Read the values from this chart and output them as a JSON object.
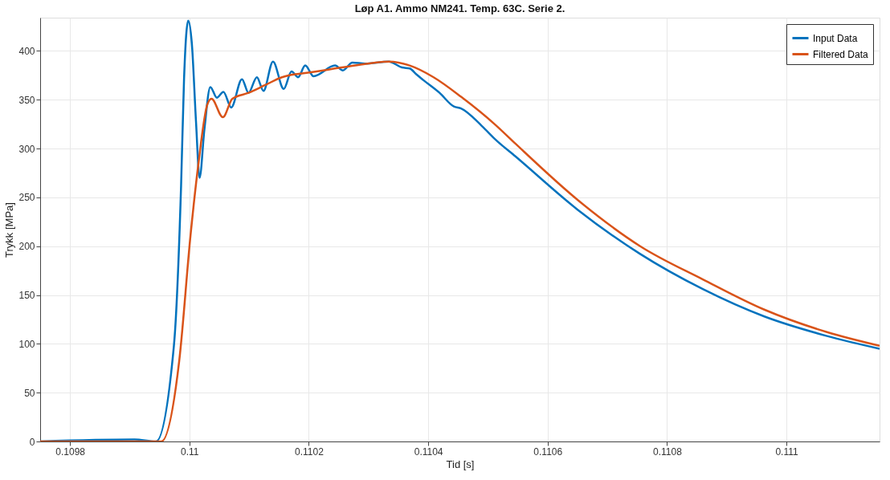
{
  "chart_data": {
    "type": "line",
    "title": "Løp A1. Ammo NM241. Temp. 63C. Serie 2.",
    "xlabel": "Tid [s]",
    "ylabel": "Trykk [MPa]",
    "xlim": [
      0.10975,
      0.111156
    ],
    "xticks": [
      0.1098,
      0.11,
      0.1102,
      0.1104,
      0.1106,
      0.1108,
      0.111
    ],
    "ylim": [
      0,
      434
    ],
    "yticks": [
      0,
      50,
      100,
      150,
      200,
      250,
      300,
      350,
      400
    ],
    "grid": true,
    "legend": "top right",
    "marker": "none",
    "line_style": "solid",
    "series": [
      {
        "name": "Input Data",
        "color": "#0072bd",
        "x": [
          0.10975,
          0.109908,
          0.109944,
          0.109974,
          0.109986,
          0.109991,
          0.109998,
          0.110004,
          0.110011,
          0.110017,
          0.110025,
          0.110035,
          0.110046,
          0.110057,
          0.11007,
          0.110088,
          0.110099,
          0.110113,
          0.110124,
          0.11014,
          0.110158,
          0.110171,
          0.110182,
          0.110194,
          0.110208,
          0.110244,
          0.110257,
          0.110273,
          0.110294,
          0.110334,
          0.110356,
          0.110369,
          0.11038,
          0.110392,
          0.110419,
          0.110443,
          0.110455,
          0.11049,
          0.110513,
          0.110546,
          0.110651,
          0.110755,
          0.11086,
          0.110963,
          0.111068,
          0.111156
        ],
        "values": [
          0,
          2,
          0,
          98,
          261,
          371,
          431,
          408,
          328,
          270,
          319,
          363,
          352,
          358,
          342,
          371,
          357,
          373,
          359,
          389,
          361,
          379,
          373,
          385,
          374,
          385,
          380,
          388,
          387,
          389,
          383,
          382,
          376,
          370,
          357,
          343,
          341,
          323,
          309,
          292,
          237,
          192,
          156,
          128,
          108,
          95
        ]
      },
      {
        "name": "Filtered Data",
        "color": "#d95319",
        "x": [
          0.10975,
          0.109953,
          0.109983,
          0.110002,
          0.110015,
          0.11003,
          0.110037,
          0.110056,
          0.110072,
          0.110099,
          0.110127,
          0.110155,
          0.110177,
          0.110191,
          0.110267,
          0.110334,
          0.110369,
          0.110409,
          0.110455,
          0.110513,
          0.110546,
          0.110651,
          0.110755,
          0.11086,
          0.110963,
          0.111068,
          0.111156
        ],
        "values": [
          0,
          0,
          83,
          212,
          284,
          345,
          351,
          332,
          351,
          357,
          365,
          373,
          376,
          377,
          384,
          389,
          385,
          373,
          353,
          324,
          305,
          247,
          200,
          166,
          135,
          112,
          98
        ]
      }
    ]
  }
}
